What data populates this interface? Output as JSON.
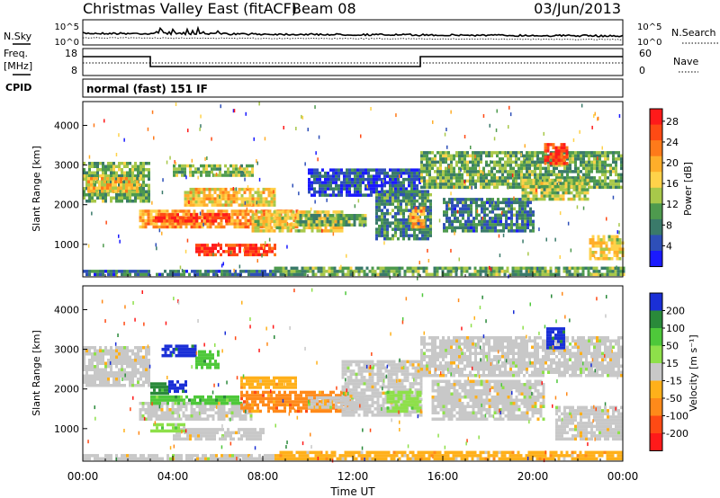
{
  "header": {
    "radar": "Christmas Valley East (fitACF)",
    "beam": "Beam 08",
    "date": "03/Jun/2013"
  },
  "noise_panel": {
    "left_label": "N.Sky",
    "right_label": "N.Search",
    "left_ticks": [
      "10^5",
      "10^0"
    ],
    "right_ticks": [
      "10^5",
      "10^0"
    ]
  },
  "freq_panel": {
    "left_label_line1": "Freq.",
    "left_label_line2": "[MHz]",
    "left_ticks": [
      "18",
      "8"
    ],
    "right_label": "Nave",
    "right_ticks": [
      "60",
      "0"
    ]
  },
  "cpid": {
    "label": "CPID",
    "value": "normal (fast) 151 IF"
  },
  "time_axis": {
    "label": "Time UT",
    "ticks": [
      "00:00",
      "04:00",
      "08:00",
      "12:00",
      "16:00",
      "20:00",
      "00:00"
    ]
  },
  "chart_data": [
    {
      "type": "heatmap",
      "name": "Power",
      "ylabel": "Slant Range [km]",
      "yticks": [
        "1000",
        "2000",
        "3000",
        "4000"
      ],
      "ylim": [
        180,
        4600
      ],
      "xlim_hours": [
        0,
        24
      ],
      "colorbar": {
        "label": "Power [dB]",
        "ticks": [
          "4",
          "8",
          "12",
          "16",
          "20",
          "24",
          "28"
        ],
        "colors": [
          "#1a1aff",
          "#2e4fb8",
          "#3a7a6a",
          "#4e9a4e",
          "#a8c84a",
          "#ffd24a",
          "#ffae2a",
          "#ff7a1a",
          "#ff4a14",
          "#ff1a1a"
        ]
      },
      "regions": [
        {
          "t0": 0.0,
          "t1": 3.0,
          "r0": 2050,
          "r1": 3050,
          "val": 0.35
        },
        {
          "t0": 0.2,
          "t1": 2.6,
          "r0": 2300,
          "r1": 2650,
          "val": 0.6
        },
        {
          "t0": 2.5,
          "t1": 9.5,
          "r0": 1400,
          "r1": 1850,
          "val": 0.7
        },
        {
          "t0": 3.2,
          "t1": 6.5,
          "r0": 1550,
          "r1": 1750,
          "val": 0.95
        },
        {
          "t0": 4.5,
          "t1": 8.5,
          "r0": 1950,
          "r1": 2350,
          "val": 0.6
        },
        {
          "t0": 5.0,
          "t1": 8.5,
          "r0": 700,
          "r1": 950,
          "val": 0.95
        },
        {
          "t0": 4.0,
          "t1": 7.5,
          "r0": 2700,
          "r1": 3000,
          "val": 0.4
        },
        {
          "t0": 7.5,
          "t1": 11.5,
          "r0": 1300,
          "r1": 1800,
          "val": 0.55
        },
        {
          "t0": 9.5,
          "t1": 12.5,
          "r0": 1450,
          "r1": 1700,
          "val": 0.35
        },
        {
          "t0": 10.0,
          "t1": 15.0,
          "r0": 2200,
          "r1": 2900,
          "val": 0.12
        },
        {
          "t0": 13.0,
          "t1": 15.5,
          "r0": 1100,
          "r1": 2300,
          "val": 0.25
        },
        {
          "t0": 14.5,
          "t1": 15.2,
          "r0": 1400,
          "r1": 1900,
          "val": 0.7
        },
        {
          "t0": 15.0,
          "t1": 24.0,
          "r0": 2400,
          "r1": 3300,
          "val": 0.35
        },
        {
          "t0": 16.0,
          "t1": 20.0,
          "r0": 1300,
          "r1": 2100,
          "val": 0.22
        },
        {
          "t0": 20.5,
          "t1": 21.5,
          "r0": 3000,
          "r1": 3500,
          "val": 0.9
        },
        {
          "t0": 19.5,
          "t1": 22.5,
          "r0": 2100,
          "r1": 2600,
          "val": 0.45
        },
        {
          "t0": 22.5,
          "t1": 24.0,
          "r0": 600,
          "r1": 1200,
          "val": 0.55
        },
        {
          "t0": 8.5,
          "t1": 24.0,
          "r0": 200,
          "r1": 360,
          "val": 0.35
        },
        {
          "t0": 0.0,
          "t1": 8.5,
          "r0": 200,
          "r1": 300,
          "val": 0.2
        }
      ]
    },
    {
      "type": "heatmap",
      "name": "Velocity",
      "ylabel": "Slant Range [km]",
      "yticks": [
        "1000",
        "2000",
        "3000",
        "4000"
      ],
      "ylim": [
        180,
        4600
      ],
      "xlim_hours": [
        0,
        24
      ],
      "colorbar": {
        "label": "Velocity [m s⁻¹]",
        "ticks": [
          "200",
          "100",
          "50",
          "15",
          "-15",
          "-50",
          "-100",
          "-200"
        ],
        "colors": [
          "#1a2fd6",
          "#2a8a3a",
          "#4ec83a",
          "#8ee04a",
          "#c8c8c8",
          "#ffb01a",
          "#ff8a1a",
          "#ff4a14",
          "#ff1a1a"
        ]
      },
      "regions": [
        {
          "t0": 0.0,
          "t1": 3.0,
          "r0": 2050,
          "r1": 3050,
          "val": 4
        },
        {
          "t0": 3.0,
          "t1": 3.8,
          "r0": 1850,
          "r1": 2150,
          "val": 1
        },
        {
          "t0": 3.8,
          "t1": 4.6,
          "r0": 1900,
          "r1": 2200,
          "val": 0
        },
        {
          "t0": 3.5,
          "t1": 5.0,
          "r0": 2800,
          "r1": 3100,
          "val": 0
        },
        {
          "t0": 5.0,
          "t1": 6.0,
          "r0": 2500,
          "r1": 2900,
          "val": 2
        },
        {
          "t0": 2.5,
          "t1": 7.5,
          "r0": 1200,
          "r1": 1600,
          "val": 4
        },
        {
          "t0": 3.0,
          "t1": 7.0,
          "r0": 1600,
          "r1": 1800,
          "val": 2
        },
        {
          "t0": 7.0,
          "t1": 12.0,
          "r0": 1400,
          "r1": 1900,
          "val": 6
        },
        {
          "t0": 7.0,
          "t1": 9.5,
          "r0": 2000,
          "r1": 2300,
          "val": 5
        },
        {
          "t0": 4.0,
          "t1": 8.0,
          "r0": 700,
          "r1": 950,
          "val": 4
        },
        {
          "t0": 3.0,
          "t1": 4.5,
          "r0": 900,
          "r1": 1100,
          "val": 3
        },
        {
          "t0": 10.0,
          "t1": 12.5,
          "r0": 1500,
          "r1": 1750,
          "val": 4
        },
        {
          "t0": 11.5,
          "t1": 15.0,
          "r0": 1300,
          "r1": 2700,
          "val": 4
        },
        {
          "t0": 13.5,
          "t1": 15.0,
          "r0": 1400,
          "r1": 1900,
          "val": 3
        },
        {
          "t0": 15.0,
          "t1": 24.0,
          "r0": 2300,
          "r1": 3300,
          "val": 4
        },
        {
          "t0": 15.5,
          "t1": 20.5,
          "r0": 1200,
          "r1": 2200,
          "val": 4
        },
        {
          "t0": 20.6,
          "t1": 21.4,
          "r0": 3000,
          "r1": 3500,
          "val": 0
        },
        {
          "t0": 21.0,
          "t1": 24.0,
          "r0": 700,
          "r1": 1500,
          "val": 4
        },
        {
          "t0": 8.5,
          "t1": 24.0,
          "r0": 200,
          "r1": 360,
          "val": 5
        },
        {
          "t0": 0.0,
          "t1": 8.5,
          "r0": 200,
          "r1": 300,
          "val": 4
        }
      ]
    }
  ]
}
